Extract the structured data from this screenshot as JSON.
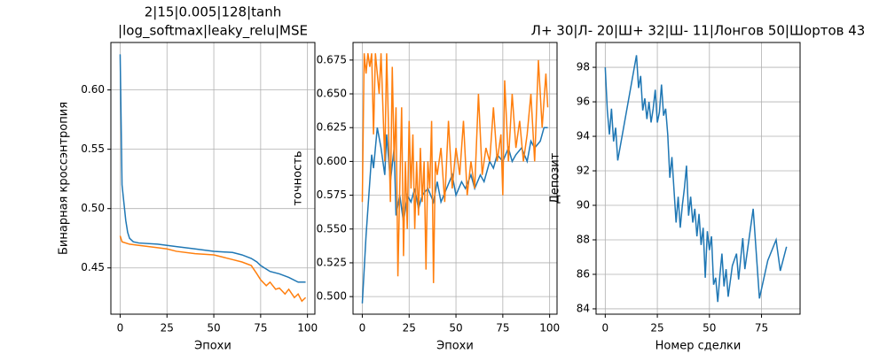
{
  "chart_data": [
    {
      "type": "line",
      "title": [
        "2|15|0.005|128|tanh",
        "|log_softmax|leaky_relu|MSE"
      ],
      "xlabel": "Эпохи",
      "ylabel": "Бинарная кроссэнтропия",
      "xlim": [
        -4.95,
        103.95
      ],
      "ylim": [
        0.411,
        0.64
      ],
      "xticks": [
        0,
        25,
        50,
        75,
        100
      ],
      "yticks": [
        0.45,
        {
          "value": 0.5,
          "label": "0.50"
        },
        0.55,
        {
          "value": 0.6,
          "label": "0.60"
        }
      ],
      "grid": true,
      "series": [
        {
          "color": "#1f77b4",
          "x": [
            0,
            1,
            2,
            3,
            4,
            5,
            7,
            10,
            20,
            30,
            40,
            50,
            60,
            65,
            70,
            73,
            75,
            80,
            85,
            90,
            95,
            99
          ],
          "values": [
            0.63,
            0.52,
            0.505,
            0.49,
            0.48,
            0.475,
            0.472,
            0.471,
            0.47,
            0.468,
            0.466,
            0.464,
            0.463,
            0.461,
            0.458,
            0.455,
            0.452,
            0.447,
            0.445,
            0.442,
            0.438,
            0.438
          ]
        },
        {
          "color": "#ff7f0e",
          "x": [
            0,
            1,
            5,
            10,
            20,
            25,
            30,
            40,
            50,
            55,
            60,
            65,
            70,
            73,
            75,
            78,
            80,
            83,
            85,
            88,
            90,
            93,
            95,
            97,
            99
          ],
          "values": [
            0.477,
            0.472,
            0.47,
            0.469,
            0.467,
            0.466,
            0.464,
            0.462,
            0.461,
            0.459,
            0.457,
            0.455,
            0.452,
            0.445,
            0.44,
            0.435,
            0.438,
            0.432,
            0.433,
            0.428,
            0.432,
            0.425,
            0.428,
            0.422,
            0.425
          ]
        }
      ]
    },
    {
      "type": "line",
      "xlabel": "Эпохи",
      "ylabel": "точность",
      "xlim": [
        -4.95,
        103.95
      ],
      "ylim": [
        0.487,
        0.688
      ],
      "xticks": [
        0,
        25,
        50,
        75,
        100
      ],
      "yticks": [
        {
          "value": 0.5,
          "label": "0.500"
        },
        0.525,
        {
          "value": 0.55,
          "label": "0.550"
        },
        0.575,
        {
          "value": 0.6,
          "label": "0.600"
        },
        0.625,
        {
          "value": 0.65,
          "label": "0.650"
        },
        0.675
      ],
      "grid": true,
      "series": [
        {
          "color": "#1f77b4",
          "x": [
            0,
            2,
            4,
            5,
            6,
            8,
            10,
            12,
            13,
            15,
            17,
            18,
            20,
            22,
            24,
            26,
            28,
            30,
            32,
            35,
            38,
            40,
            42,
            45,
            48,
            50,
            53,
            55,
            58,
            60,
            63,
            65,
            68,
            70,
            72,
            75,
            78,
            80,
            82,
            85,
            88,
            90,
            92,
            95,
            97,
            99
          ],
          "values": [
            0.495,
            0.545,
            0.585,
            0.605,
            0.595,
            0.625,
            0.61,
            0.59,
            0.62,
            0.585,
            0.61,
            0.56,
            0.575,
            0.555,
            0.575,
            0.57,
            0.58,
            0.565,
            0.575,
            0.58,
            0.57,
            0.585,
            0.57,
            0.58,
            0.59,
            0.575,
            0.585,
            0.58,
            0.59,
            0.58,
            0.59,
            0.585,
            0.6,
            0.595,
            0.605,
            0.6,
            0.61,
            0.6,
            0.605,
            0.61,
            0.6,
            0.615,
            0.61,
            0.615,
            0.625,
            0.625
          ]
        },
        {
          "color": "#ff7f0e",
          "x": [
            0,
            1,
            2,
            3,
            4,
            5,
            6,
            7,
            9,
            10,
            12,
            13,
            15,
            16,
            17,
            18,
            19,
            20,
            21,
            22,
            23,
            24,
            25,
            26,
            27,
            28,
            29,
            30,
            31,
            32,
            33,
            34,
            35,
            36,
            37,
            38,
            39,
            40,
            42,
            44,
            46,
            48,
            50,
            52,
            54,
            56,
            58,
            60,
            62,
            64,
            66,
            68,
            70,
            72,
            74,
            75,
            76,
            78,
            80,
            82,
            84,
            86,
            88,
            90,
            92,
            94,
            96,
            98,
            99
          ],
          "values": [
            0.57,
            0.68,
            0.665,
            0.68,
            0.67,
            0.68,
            0.62,
            0.68,
            0.65,
            0.68,
            0.6,
            0.68,
            0.57,
            0.67,
            0.6,
            0.64,
            0.515,
            0.58,
            0.64,
            0.53,
            0.6,
            0.55,
            0.63,
            0.58,
            0.62,
            0.55,
            0.6,
            0.56,
            0.61,
            0.57,
            0.6,
            0.52,
            0.6,
            0.58,
            0.63,
            0.51,
            0.6,
            0.59,
            0.61,
            0.57,
            0.63,
            0.58,
            0.61,
            0.59,
            0.63,
            0.575,
            0.6,
            0.58,
            0.65,
            0.59,
            0.61,
            0.6,
            0.64,
            0.6,
            0.62,
            0.575,
            0.66,
            0.6,
            0.65,
            0.61,
            0.63,
            0.6,
            0.62,
            0.65,
            0.6,
            0.675,
            0.625,
            0.665,
            0.64
          ]
        }
      ]
    },
    {
      "type": "line",
      "title": [
        "Л+ 30|Л- 20|Ш+ 32|Ш- 11|Лонгов 50|Шортов 43"
      ],
      "xlabel": "Номер сделки",
      "ylabel": "Депозит",
      "xlim": [
        -4.4,
        93.5
      ],
      "ylim": [
        83.69,
        99.44
      ],
      "xticks": [
        0,
        25,
        50,
        75
      ],
      "yticks": [
        84,
        86,
        88,
        90,
        92,
        94,
        96,
        98
      ],
      "grid": true,
      "series": [
        {
          "color": "#1f77b4",
          "x": [
            0,
            1,
            2,
            3,
            4,
            5,
            6,
            15,
            16,
            17,
            18,
            19,
            20,
            21,
            22,
            23,
            24,
            25,
            26,
            27,
            28,
            29,
            30,
            31,
            32,
            33,
            34,
            35,
            36,
            37,
            38,
            39,
            40,
            41,
            42,
            43,
            44,
            45,
            46,
            47,
            48,
            49,
            50,
            51,
            52,
            53,
            54,
            55,
            56,
            57,
            58,
            59,
            61,
            63,
            64,
            66,
            67,
            71,
            74,
            78,
            82,
            84,
            87
          ],
          "values": [
            98,
            95.5,
            94.1,
            95.6,
            93.7,
            94.5,
            92.6,
            98.7,
            96.8,
            97.5,
            95.5,
            96.2,
            95,
            96,
            94.8,
            95.6,
            96.7,
            94.8,
            95.4,
            97,
            95.2,
            95.6,
            94.1,
            91.6,
            92.8,
            90.9,
            89,
            90.5,
            88.7,
            90,
            91,
            92.3,
            89.4,
            90.5,
            89,
            89.8,
            88.2,
            89.5,
            87.7,
            88.7,
            85.8,
            88.5,
            87.4,
            88.2,
            85.4,
            85.8,
            84.4,
            85.9,
            87.2,
            85.3,
            86.3,
            84.7,
            86.5,
            87.2,
            85.7,
            88.1,
            86.3,
            89.8,
            84.6,
            86.8,
            88,
            86.2,
            87.6
          ]
        }
      ]
    }
  ]
}
